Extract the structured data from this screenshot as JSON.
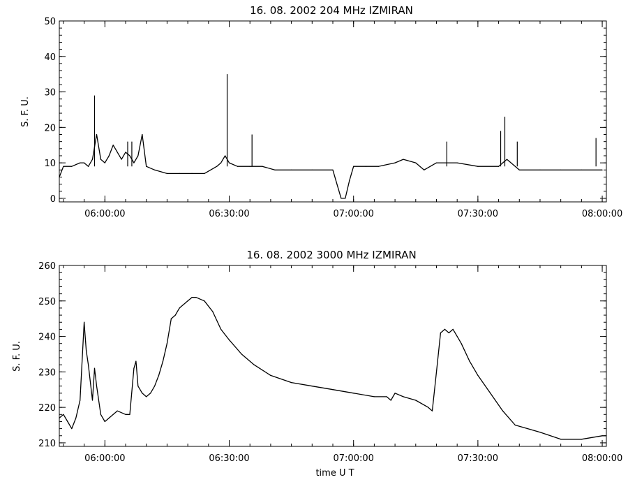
{
  "chart_data": [
    {
      "type": "line",
      "title": "16.  08.  2002    204 MHz    IZMIRAN",
      "xlabel": "",
      "ylabel": "S. F. U.",
      "xlim": [
        "05:49:00",
        "08:01:00"
      ],
      "ylim": [
        -1,
        50
      ],
      "x_ticks": [
        "06:00:00",
        "06:30:00",
        "07:00:00",
        "07:30:00",
        "08:00:00"
      ],
      "y_ticks": [
        0,
        10,
        20,
        30,
        40,
        50
      ],
      "grid": false,
      "series": [
        {
          "x": [
            "05:49:00",
            "05:50:00",
            "05:52:00",
            "05:54:00",
            "05:55:00",
            "05:56:00",
            "05:57:00",
            "05:58:00",
            "05:59:00",
            "06:00:00",
            "06:01:00",
            "06:02:00",
            "06:03:00",
            "06:04:00",
            "06:05:00",
            "06:06:00",
            "06:07:00",
            "06:08:00",
            "06:09:00",
            "06:10:00",
            "06:12:00",
            "06:15:00",
            "06:18:00",
            "06:21:00",
            "06:24:00",
            "06:27:00",
            "06:28:00",
            "06:29:00",
            "06:30:00",
            "06:32:00",
            "06:35:00",
            "06:38:00",
            "06:41:00",
            "06:45:00",
            "06:50:00",
            "06:55:00",
            "06:56:00",
            "06:57:00",
            "06:58:00",
            "06:59:00",
            "07:00:00",
            "07:03:00",
            "07:06:00",
            "07:10:00",
            "07:12:00",
            "07:15:00",
            "07:17:00",
            "07:20:00",
            "07:25:00",
            "07:30:00",
            "07:35:00",
            "07:36:00",
            "07:37:00",
            "07:40:00",
            "07:45:00",
            "07:50:00",
            "07:55:00",
            "08:00:00"
          ],
          "y": [
            6,
            9,
            9,
            10,
            10,
            9,
            11,
            18,
            11,
            10,
            12,
            15,
            13,
            11,
            13,
            12,
            10,
            12,
            18,
            9,
            8,
            7,
            7,
            7,
            7,
            9,
            10,
            12,
            10,
            9,
            9,
            9,
            8,
            8,
            8,
            8,
            4,
            0,
            0,
            5,
            9,
            9,
            9,
            10,
            11,
            10,
            8,
            10,
            10,
            9,
            9,
            10,
            11,
            8,
            8,
            8,
            8,
            8
          ]
        }
      ],
      "spikes": [
        {
          "x": "05:57:30",
          "y": 29
        },
        {
          "x": "06:05:30",
          "y": 16
        },
        {
          "x": "06:06:30",
          "y": 16
        },
        {
          "x": "06:29:30",
          "y": 35
        },
        {
          "x": "06:35:30",
          "y": 18
        },
        {
          "x": "07:22:30",
          "y": 16
        },
        {
          "x": "07:35:30",
          "y": 19
        },
        {
          "x": "07:36:30",
          "y": 23
        },
        {
          "x": "07:39:30",
          "y": 16
        },
        {
          "x": "07:58:30",
          "y": 17
        }
      ]
    },
    {
      "type": "line",
      "title": "16.  08.  2002    3000 MHz    IZMIRAN",
      "xlabel": "time   U T",
      "ylabel": "S. F. U.",
      "xlim": [
        "05:49:00",
        "08:01:00"
      ],
      "ylim": [
        209,
        260
      ],
      "x_ticks": [
        "06:00:00",
        "06:30:00",
        "07:00:00",
        "07:30:00",
        "08:00:00"
      ],
      "y_ticks": [
        210,
        220,
        230,
        240,
        250,
        260
      ],
      "grid": false,
      "series": [
        {
          "x": [
            "05:49:00",
            "05:50:00",
            "05:51:00",
            "05:52:00",
            "05:53:00",
            "05:54:00",
            "05:55:00",
            "05:55:30",
            "05:56:00",
            "05:57:00",
            "05:57:30",
            "05:58:00",
            "05:59:00",
            "06:00:00",
            "06:01:00",
            "06:02:00",
            "06:03:00",
            "06:05:00",
            "06:06:00",
            "06:07:00",
            "06:07:30",
            "06:08:00",
            "06:09:00",
            "06:10:00",
            "06:11:00",
            "06:12:00",
            "06:13:00",
            "06:14:00",
            "06:15:00",
            "06:16:00",
            "06:17:00",
            "06:18:00",
            "06:20:00",
            "06:21:00",
            "06:22:00",
            "06:24:00",
            "06:26:00",
            "06:28:00",
            "06:30:00",
            "06:33:00",
            "06:36:00",
            "06:40:00",
            "06:45:00",
            "06:50:00",
            "06:55:00",
            "07:00:00",
            "07:05:00",
            "07:08:00",
            "07:09:00",
            "07:10:00",
            "07:12:00",
            "07:15:00",
            "07:18:00",
            "07:19:00",
            "07:20:00",
            "07:21:00",
            "07:22:00",
            "07:23:00",
            "07:24:00",
            "07:25:00",
            "07:26:00",
            "07:28:00",
            "07:30:00",
            "07:33:00",
            "07:36:00",
            "07:39:00",
            "07:42:00",
            "07:45:00",
            "07:50:00",
            "07:55:00",
            "08:00:00",
            "08:01:00"
          ],
          "y": [
            217,
            218,
            216,
            214,
            217,
            222,
            244,
            236,
            232,
            222,
            231,
            226,
            218,
            216,
            217,
            218,
            219,
            218,
            218,
            231,
            233,
            226,
            224,
            223,
            224,
            226,
            229,
            233,
            238,
            245,
            246,
            248,
            250,
            251,
            251,
            250,
            247,
            242,
            239,
            235,
            232,
            229,
            227,
            226,
            225,
            224,
            223,
            223,
            222,
            224,
            223,
            222,
            220,
            219,
            230,
            241,
            242,
            241,
            242,
            240,
            238,
            233,
            229,
            224,
            219,
            215,
            214,
            213,
            211,
            211,
            212,
            212
          ]
        }
      ]
    }
  ]
}
